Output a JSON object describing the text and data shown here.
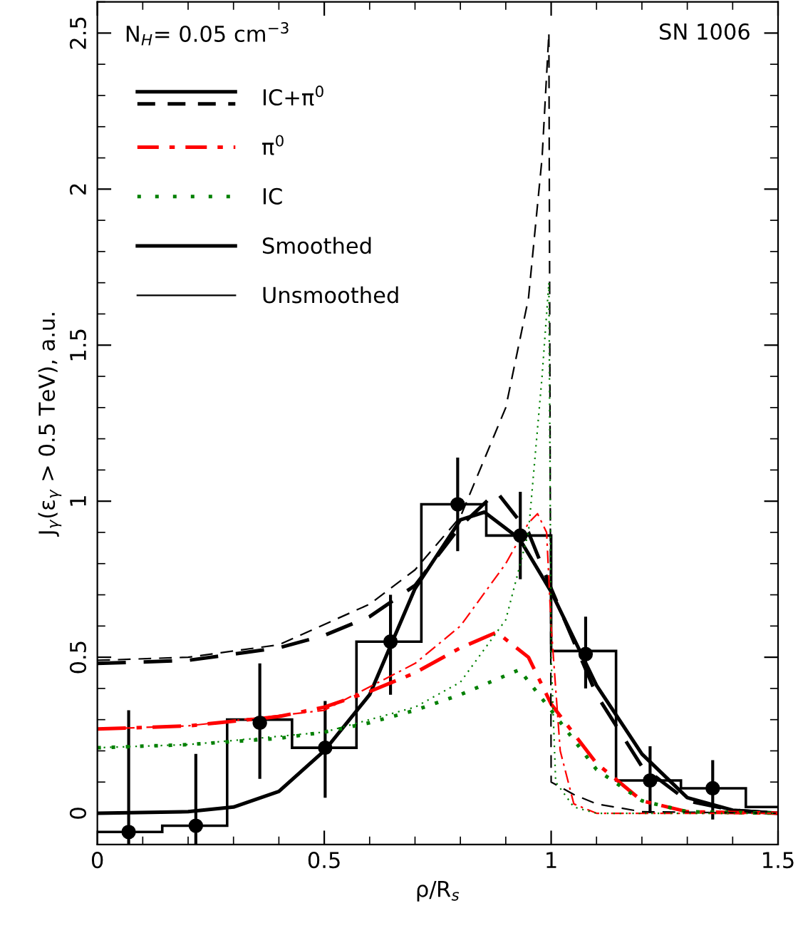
{
  "chart_data": {
    "type": "line",
    "xlabel": "ρ/R$_{s}$",
    "ylabel": "J$_{γ}$(ε$_{γ}$ > 0.5 TeV), a.u.",
    "annotations": [
      "N$_{H}$= 0.05 cm$^{−3}$",
      "SN 1006"
    ],
    "xlim": [
      0,
      1.5
    ],
    "ylim": [
      -0.1,
      2.6
    ],
    "xticks": [
      0,
      0.5,
      1,
      1.5
    ],
    "yticks": [
      0,
      0.5,
      1,
      1.5,
      2,
      2.5
    ],
    "grid": false,
    "legend": "top left",
    "series": [
      {
        "type": "histogram",
        "color": "#000000",
        "bins": [
          0,
          0.143,
          0.286,
          0.429,
          0.571,
          0.714,
          0.857,
          1.0,
          1.143,
          1.286,
          1.429,
          1.5
        ],
        "values": [
          -0.06,
          -0.04,
          0.3,
          0.21,
          0.55,
          0.99,
          0.89,
          0.52,
          0.105,
          0.08,
          0.02
        ]
      },
      {
        "type": "scatter",
        "color": "#000000",
        "marker": "circle",
        "x": [
          0.069,
          0.217,
          0.358,
          0.502,
          0.646,
          0.794,
          0.932,
          1.076,
          1.218,
          1.356
        ],
        "values": [
          -0.06,
          -0.04,
          0.29,
          0.21,
          0.55,
          0.99,
          0.89,
          0.51,
          0.105,
          0.08
        ],
        "errors": [
          [
            -0.1,
            0.33
          ],
          [
            -0.1,
            0.19
          ],
          [
            0.11,
            0.48
          ],
          [
            0.05,
            0.36
          ],
          [
            0.38,
            0.7
          ],
          [
            0.84,
            1.14
          ],
          [
            0.75,
            1.03
          ],
          [
            0.4,
            0.63
          ],
          [
            0,
            0.215
          ],
          [
            -0.02,
            0.17
          ]
        ]
      },
      {
        "name": "Smoothed",
        "color": "#000000",
        "line_style": "solid"
      },
      {
        "name": "IC+π$^{0}$",
        "color": "#000000",
        "line_style": "solid",
        "x": [
          0,
          0.2,
          0.3,
          0.4,
          0.5,
          0.6,
          0.7,
          0.8,
          0.853,
          0.93,
          1.0,
          1.1,
          1.2,
          1.3,
          1.4,
          1.5
        ],
        "values": [
          0.0,
          0.005,
          0.02,
          0.07,
          0.2,
          0.38,
          0.72,
          0.94,
          0.965,
          0.88,
          0.71,
          0.41,
          0.19,
          0.05,
          0.01,
          0.0
        ]
      },
      {
        "color": "#000000",
        "line_style": "dashed",
        "x": [
          0,
          0.2,
          0.4,
          0.5,
          0.6,
          0.7,
          0.8,
          0.88,
          0.95,
          1.0,
          1.1,
          1.2,
          1.3,
          1.4,
          1.5
        ],
        "values": [
          0.48,
          0.49,
          0.53,
          0.57,
          0.63,
          0.73,
          0.92,
          1.03,
          0.9,
          0.72,
          0.38,
          0.15,
          0.04,
          0.01,
          0.0
        ]
      },
      {
        "name": "π$^{0}$",
        "color": "#ff0000",
        "line_style": "dashdot",
        "x": [
          0,
          0.2,
          0.4,
          0.5,
          0.6,
          0.7,
          0.8,
          0.88,
          0.95,
          1.0,
          1.1,
          1.2,
          1.3,
          1.5
        ],
        "values": [
          0.27,
          0.28,
          0.31,
          0.34,
          0.39,
          0.45,
          0.53,
          0.58,
          0.5,
          0.35,
          0.16,
          0.04,
          0.005,
          0.0
        ]
      },
      {
        "name": "IC",
        "color": "#008000",
        "line_style": "dotted",
        "x": [
          0,
          0.2,
          0.4,
          0.5,
          0.6,
          0.7,
          0.8,
          0.93,
          1.0,
          1.1,
          1.2,
          1.3,
          1.5
        ],
        "values": [
          0.21,
          0.22,
          0.24,
          0.26,
          0.29,
          0.33,
          0.38,
          0.46,
          0.33,
          0.14,
          0.04,
          0.005,
          0.0
        ]
      },
      {
        "name": "Unsmoothed",
        "color": "#000000",
        "line_style": "solid"
      },
      {
        "color": "#000000",
        "line_style": "dashed",
        "x": [
          0,
          0.2,
          0.4,
          0.6,
          0.7,
          0.8,
          0.9,
          0.95,
          0.98,
          0.995,
          1.0,
          1.05,
          1.1,
          1.2,
          1.5
        ],
        "values": [
          0.49,
          0.5,
          0.54,
          0.67,
          0.78,
          0.95,
          1.3,
          1.65,
          2.1,
          2.5,
          0.1,
          0.06,
          0.03,
          0.005,
          0.0
        ]
      },
      {
        "color": "#ff0000",
        "line_style": "dashdot",
        "x": [
          0,
          0.2,
          0.5,
          0.7,
          0.8,
          0.9,
          0.95,
          0.97,
          0.99,
          1.0,
          1.02,
          1.05,
          1.1,
          1.5
        ],
        "values": [
          0.27,
          0.28,
          0.33,
          0.48,
          0.6,
          0.8,
          0.93,
          0.96,
          0.9,
          0.6,
          0.2,
          0.03,
          0.0,
          0.0
        ]
      },
      {
        "color": "#008000",
        "line_style": "dotted",
        "x": [
          0,
          0.2,
          0.5,
          0.7,
          0.8,
          0.9,
          0.95,
          0.98,
          0.995,
          1.0,
          1.01,
          1.05,
          1.1,
          1.5
        ],
        "values": [
          0.21,
          0.22,
          0.26,
          0.34,
          0.42,
          0.62,
          0.9,
          1.4,
          1.7,
          0.5,
          0.1,
          0.02,
          0.0,
          0.0
        ]
      }
    ]
  }
}
